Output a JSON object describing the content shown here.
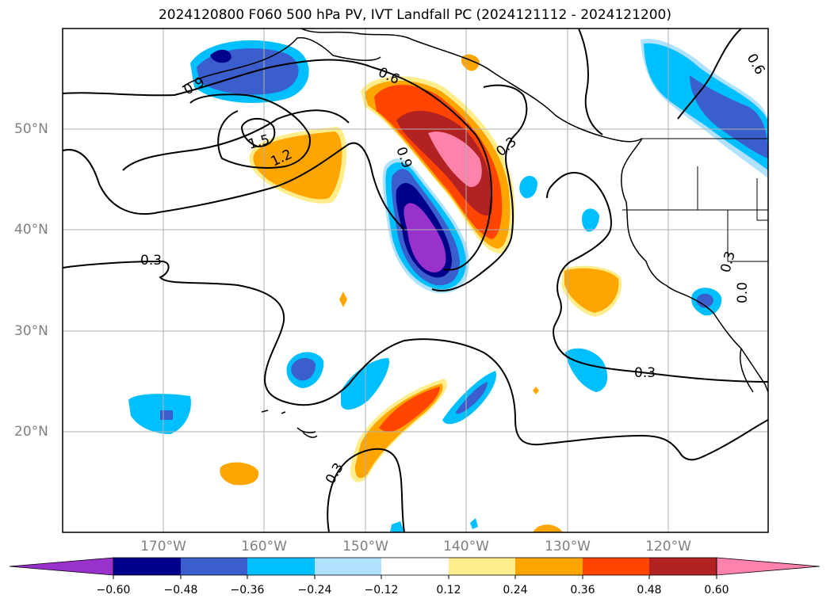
{
  "title": "2024120800 F060 500 hPa PV, IVT Landfall PC (2024121112 - 2024121200)",
  "lon_labels": [
    "170°W",
    "160°W",
    "150°W",
    "140°W",
    "130°W",
    "120°W"
  ],
  "lat_labels": [
    "50°N",
    "40°N",
    "30°N",
    "20°N"
  ],
  "contour_labels": [
    "0.6",
    "0.9",
    "1.5",
    "1.2",
    "0.9",
    "0.3",
    "0.3",
    "0.3",
    "0.3",
    "0.3",
    "0.0",
    "0.6"
  ],
  "colorbar": {
    "ticks": [
      "−0.60",
      "−0.48",
      "−0.36",
      "−0.24",
      "−0.12",
      "0.12",
      "0.24",
      "0.36",
      "0.48",
      "0.60"
    ],
    "colors": [
      "#9932cc",
      "#00008b",
      "#3a5fcd",
      "#00bfff",
      "#b0e2ff",
      "#ffffff",
      "#ffec8b",
      "#ffa500",
      "#ff4500",
      "#b22222",
      "#ff82ab"
    ]
  }
}
